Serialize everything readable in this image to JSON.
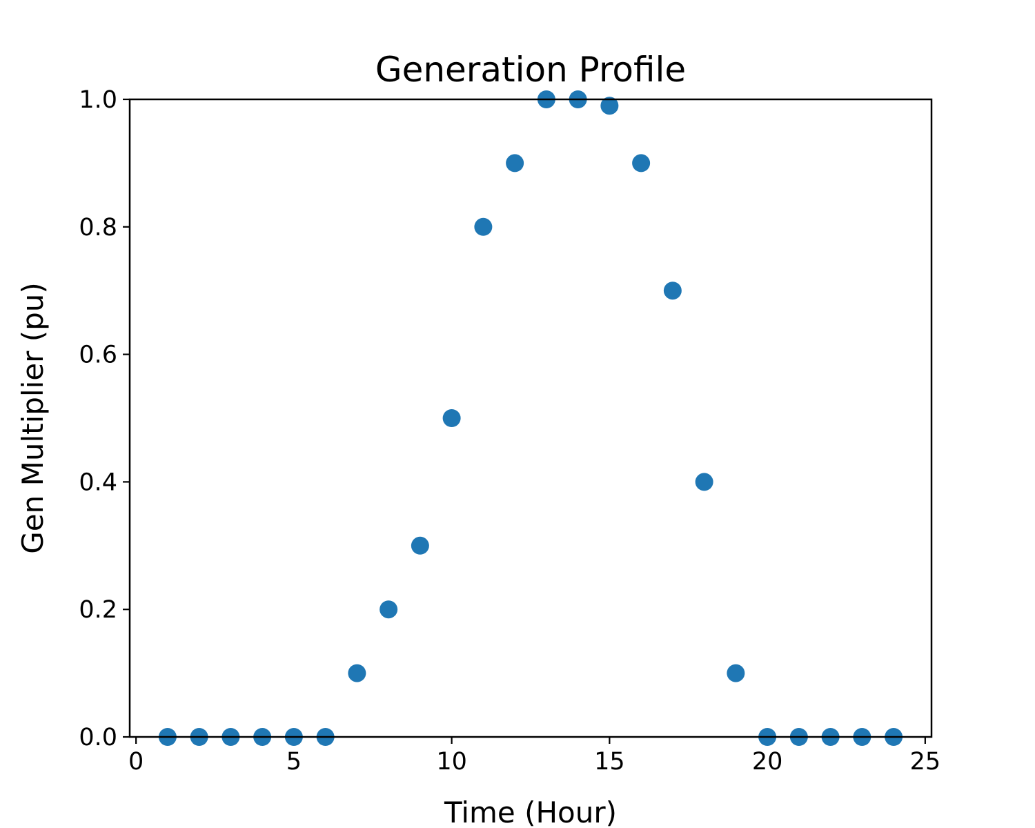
{
  "chart_data": {
    "type": "scatter",
    "title": "Generation Profile",
    "xlabel": "Time (Hour)",
    "ylabel": "Gen Multiplier (pu)",
    "xlim": [
      -0.2,
      25.2
    ],
    "ylim": [
      0.0,
      1.0
    ],
    "xticks": [
      0,
      5,
      10,
      15,
      20,
      25
    ],
    "xtick_labels": [
      "0",
      "5",
      "10",
      "15",
      "20",
      "25"
    ],
    "yticks": [
      0.0,
      0.2,
      0.4,
      0.6,
      0.8,
      1.0
    ],
    "ytick_labels": [
      "0.0",
      "0.2",
      "0.4",
      "0.6",
      "0.8",
      "1.0"
    ],
    "grid": false,
    "marker_color": "#1f77b4",
    "series": [
      {
        "x": [
          1,
          2,
          3,
          4,
          5,
          6,
          7,
          8,
          9,
          10,
          11,
          12,
          13,
          14,
          15,
          16,
          17,
          18,
          19,
          20,
          21,
          22,
          23,
          24
        ],
        "y": [
          0.0,
          0.0,
          0.0,
          0.0,
          0.0,
          0.0,
          0.1,
          0.2,
          0.3,
          0.5,
          0.8,
          0.9,
          1.0,
          1.0,
          0.99,
          0.9,
          0.7,
          0.4,
          0.1,
          0.0,
          0.0,
          0.0,
          0.0,
          0.0
        ]
      }
    ]
  }
}
